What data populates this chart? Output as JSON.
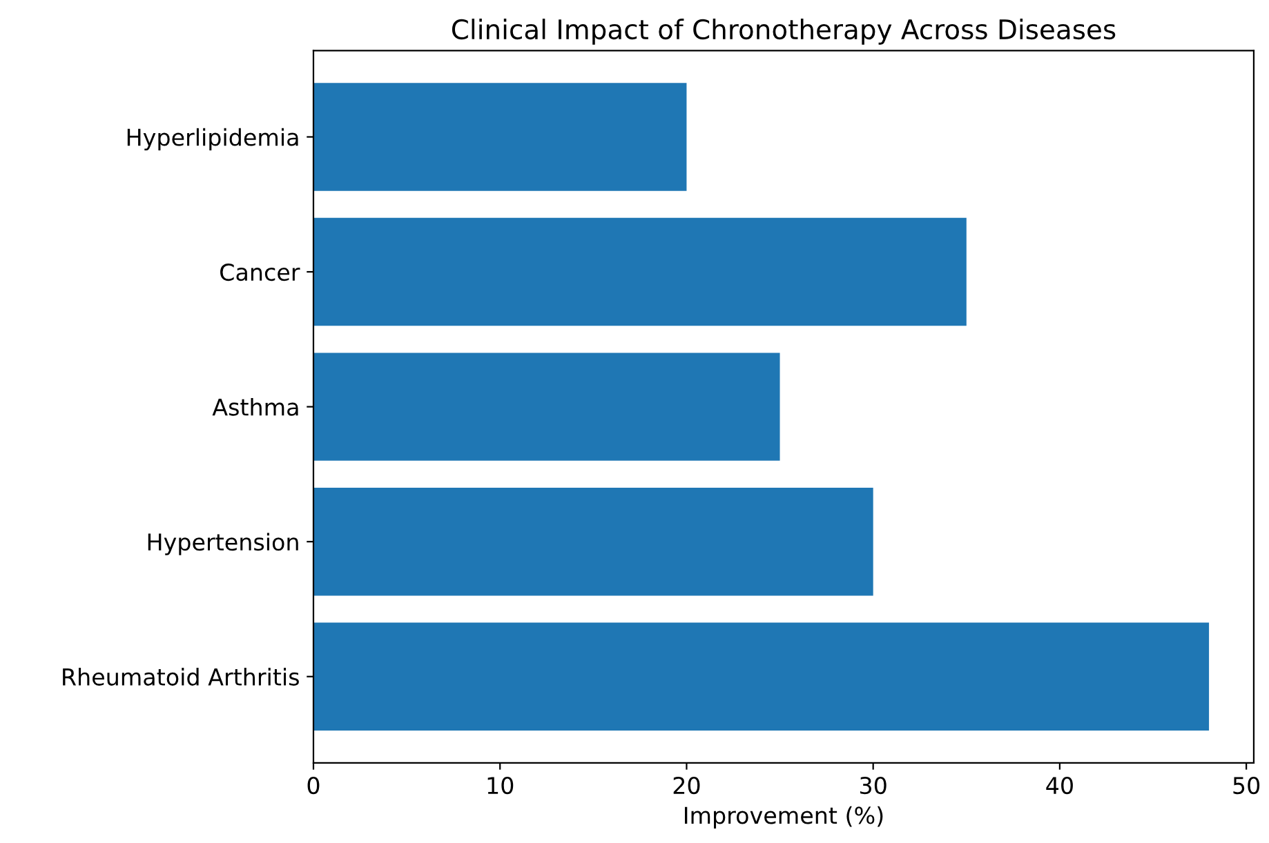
{
  "chart_data": {
    "type": "bar",
    "orientation": "horizontal",
    "title": "Clinical Impact of Chronotherapy Across Diseases",
    "xlabel": "Improvement (%)",
    "categories": [
      "Hyperlipidemia",
      "Cancer",
      "Asthma",
      "Hypertension",
      "Rheumatoid Arthritis"
    ],
    "values": [
      20,
      35,
      25,
      30,
      48
    ],
    "color": "#1f77b4",
    "xlim": [
      0,
      50.4
    ],
    "xticks": [
      0,
      10,
      20,
      30,
      40,
      50
    ],
    "grid": false
  }
}
